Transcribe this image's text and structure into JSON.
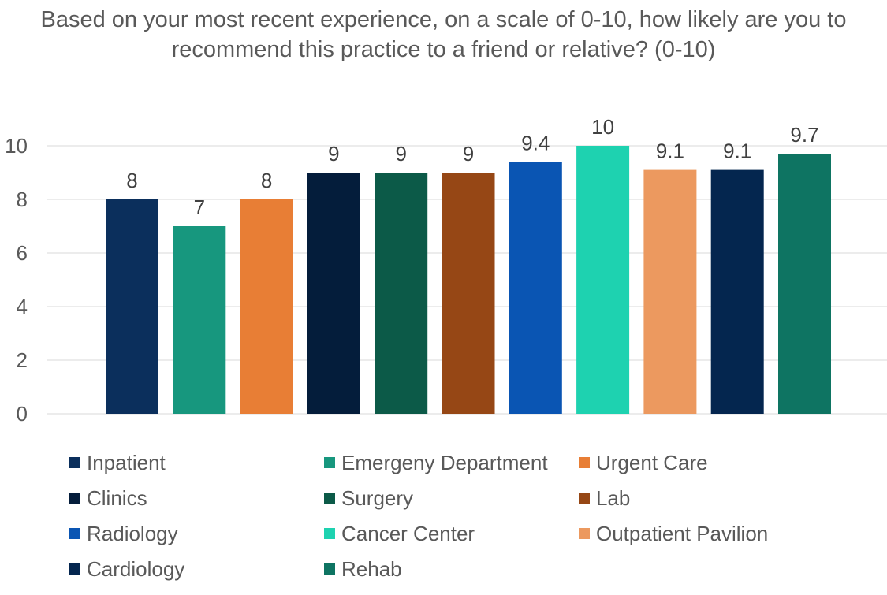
{
  "chart_data": {
    "type": "bar",
    "title": "Based on your most recent experience, on a scale of 0-10, how likely are you to recommend this practice to a friend or relative? (0-10)",
    "ylim": [
      0,
      10
    ],
    "yticks": [
      0,
      2,
      4,
      6,
      8,
      10
    ],
    "grid": true,
    "legend_position": "bottom",
    "categories": [
      "Inpatient",
      "Emergeny Department",
      "Urgent Care",
      "Clinics",
      "Surgery",
      "Lab",
      "Radiology",
      "Cancer Center",
      "Outpatient Pavilion",
      "Cardiology",
      "Rehab"
    ],
    "values": [
      8,
      7,
      8,
      9,
      9,
      9,
      9.4,
      10,
      9.1,
      9.1,
      9.7
    ],
    "data_labels": [
      "8",
      "7",
      "8",
      "9",
      "9",
      "9",
      "9.4",
      "10",
      "9.1",
      "9.1",
      "9.7"
    ],
    "colors": [
      "#0b2f5c",
      "#17977e",
      "#e87e35",
      "#041d3b",
      "#0c5a48",
      "#964715",
      "#0a55b3",
      "#1ed2b0",
      "#ec995f",
      "#04264f",
      "#0e7462"
    ]
  }
}
